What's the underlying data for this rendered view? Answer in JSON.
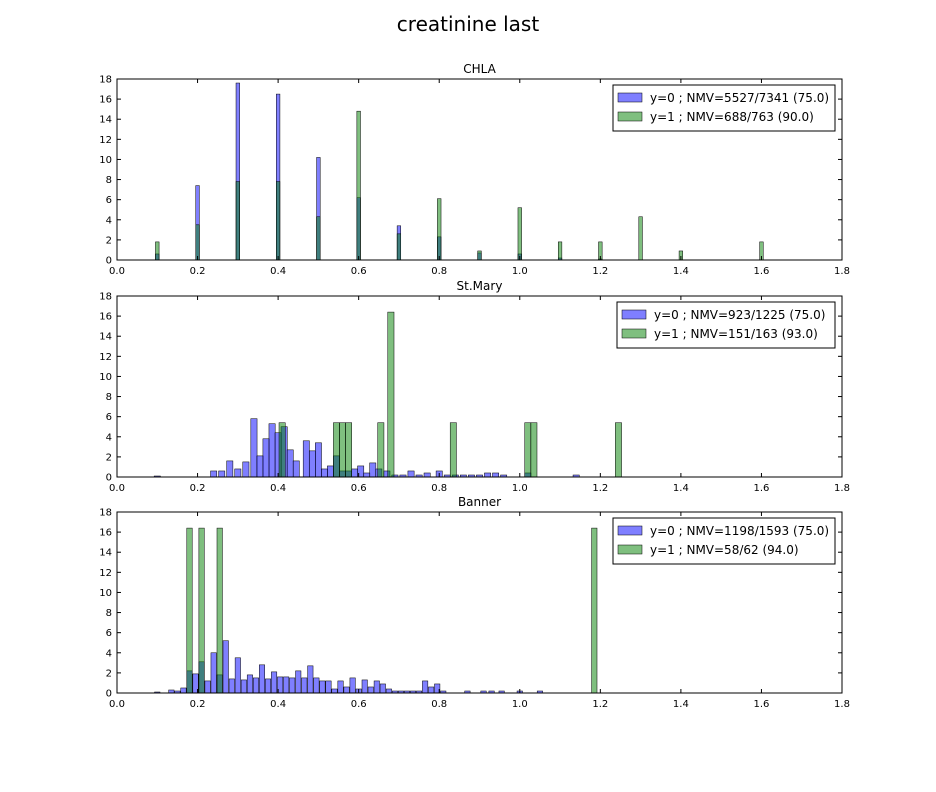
{
  "figure_title": "creatinine last",
  "colors": {
    "y0": "#0000ff",
    "y1": "#008000"
  },
  "chart_data": [
    {
      "type": "bar",
      "title": "CHLA",
      "xlim": [
        0,
        1.8
      ],
      "ylim": [
        0,
        18
      ],
      "xticks": [
        0.0,
        0.2,
        0.4,
        0.6,
        0.8,
        1.0,
        1.2,
        1.4,
        1.6,
        1.8
      ],
      "yticks": [
        0,
        2,
        4,
        6,
        8,
        10,
        12,
        14,
        16,
        18
      ],
      "bin_width": 0.009,
      "legend_position": "top-right",
      "series": [
        {
          "name": "y=0 ; NMV=5527/7341 (75.0)",
          "color": "#0000ff",
          "x": [
            0.1,
            0.2,
            0.3,
            0.4,
            0.5,
            0.6,
            0.7,
            0.8,
            0.9,
            1.0,
            1.1,
            1.2
          ],
          "values": [
            0.6,
            7.4,
            17.6,
            16.5,
            10.2,
            6.2,
            3.4,
            2.3,
            0.7,
            0.6,
            0.2,
            0.1
          ]
        },
        {
          "name": "y=1 ; NMV=688/763 (90.0)",
          "color": "#008000",
          "x": [
            0.1,
            0.2,
            0.3,
            0.4,
            0.5,
            0.6,
            0.7,
            0.8,
            0.9,
            1.0,
            1.1,
            1.2,
            1.3,
            1.4,
            1.6
          ],
          "values": [
            1.8,
            3.5,
            7.8,
            7.8,
            4.3,
            14.8,
            2.6,
            6.1,
            0.9,
            5.2,
            1.8,
            1.8,
            4.3,
            0.9,
            1.8
          ]
        }
      ]
    },
    {
      "type": "bar",
      "title": "St.Mary",
      "xlim": [
        0,
        1.8
      ],
      "ylim": [
        0,
        18
      ],
      "xticks": [
        0.0,
        0.2,
        0.4,
        0.6,
        0.8,
        1.0,
        1.2,
        1.4,
        1.6,
        1.8
      ],
      "yticks": [
        0,
        2,
        4,
        6,
        8,
        10,
        12,
        14,
        16,
        18
      ],
      "bin_width": 0.0155,
      "legend_position": "top-right",
      "series": [
        {
          "name": "y=0 ; NMV=923/1225 (75.0)",
          "color": "#0000ff",
          "x": [
            0.1,
            0.24,
            0.26,
            0.28,
            0.3,
            0.32,
            0.34,
            0.355,
            0.37,
            0.385,
            0.4,
            0.415,
            0.43,
            0.445,
            0.47,
            0.485,
            0.5,
            0.515,
            0.53,
            0.545,
            0.56,
            0.575,
            0.59,
            0.605,
            0.62,
            0.635,
            0.65,
            0.67,
            0.69,
            0.71,
            0.73,
            0.75,
            0.77,
            0.8,
            0.82,
            0.84,
            0.86,
            0.88,
            0.9,
            0.92,
            0.94,
            0.96,
            1.02,
            1.14
          ],
          "values": [
            0.1,
            0.6,
            0.6,
            1.6,
            0.8,
            1.5,
            5.8,
            2.1,
            3.8,
            5.3,
            4.4,
            5.0,
            2.7,
            1.6,
            3.6,
            2.6,
            3.4,
            0.8,
            1.1,
            2.1,
            0.6,
            0.6,
            0.8,
            1.1,
            0.4,
            1.4,
            0.8,
            0.6,
            0.2,
            0.2,
            0.6,
            0.2,
            0.4,
            0.6,
            0.2,
            0.2,
            0.2,
            0.2,
            0.2,
            0.4,
            0.4,
            0.2,
            0.4,
            0.2
          ]
        },
        {
          "name": "y=1 ; NMV=151/163 (93.0)",
          "color": "#008000",
          "x": [
            0.41,
            0.545,
            0.56,
            0.575,
            0.655,
            0.68,
            0.835,
            1.02,
            1.035,
            1.245
          ],
          "values": [
            5.4,
            5.4,
            5.4,
            5.4,
            5.4,
            16.4,
            5.4,
            5.4,
            5.4,
            5.4
          ]
        }
      ]
    },
    {
      "type": "bar",
      "title": "Banner",
      "xlim": [
        0,
        1.8
      ],
      "ylim": [
        0,
        18
      ],
      "xticks": [
        0.0,
        0.2,
        0.4,
        0.6,
        0.8,
        1.0,
        1.2,
        1.4,
        1.6,
        1.8
      ],
      "yticks": [
        0,
        2,
        4,
        6,
        8,
        10,
        12,
        14,
        16,
        18
      ],
      "bin_width": 0.0135,
      "legend_position": "top-right",
      "series": [
        {
          "name": "y=0 ; NMV=1198/1593 (75.0)",
          "color": "#0000ff",
          "x": [
            0.1,
            0.135,
            0.15,
            0.165,
            0.18,
            0.195,
            0.21,
            0.225,
            0.24,
            0.255,
            0.27,
            0.285,
            0.3,
            0.315,
            0.33,
            0.345,
            0.36,
            0.375,
            0.39,
            0.405,
            0.42,
            0.435,
            0.45,
            0.465,
            0.48,
            0.495,
            0.51,
            0.525,
            0.54,
            0.555,
            0.57,
            0.585,
            0.6,
            0.615,
            0.63,
            0.645,
            0.66,
            0.675,
            0.69,
            0.705,
            0.72,
            0.735,
            0.75,
            0.765,
            0.78,
            0.795,
            0.81,
            0.87,
            0.91,
            0.93,
            0.955,
            1.0,
            1.05
          ],
          "values": [
            0.1,
            0.3,
            0.2,
            0.5,
            2.2,
            1.9,
            3.1,
            1.2,
            4.0,
            1.8,
            5.2,
            1.4,
            3.5,
            1.3,
            1.8,
            1.5,
            2.8,
            1.4,
            2.1,
            1.6,
            1.6,
            1.5,
            2.2,
            1.5,
            2.7,
            1.5,
            1.2,
            1.2,
            0.4,
            1.2,
            0.6,
            1.5,
            0.4,
            1.3,
            0.6,
            1.2,
            0.9,
            0.4,
            0.2,
            0.2,
            0.2,
            0.2,
            0.2,
            1.2,
            0.6,
            0.9,
            0.2,
            0.2,
            0.2,
            0.2,
            0.2,
            0.2,
            0.2
          ]
        },
        {
          "name": "y=1 ; NMV=58/62 (94.0)",
          "color": "#008000",
          "x": [
            0.18,
            0.21,
            0.255,
            1.185
          ],
          "values": [
            16.4,
            16.4,
            16.4,
            16.4
          ]
        }
      ]
    }
  ]
}
